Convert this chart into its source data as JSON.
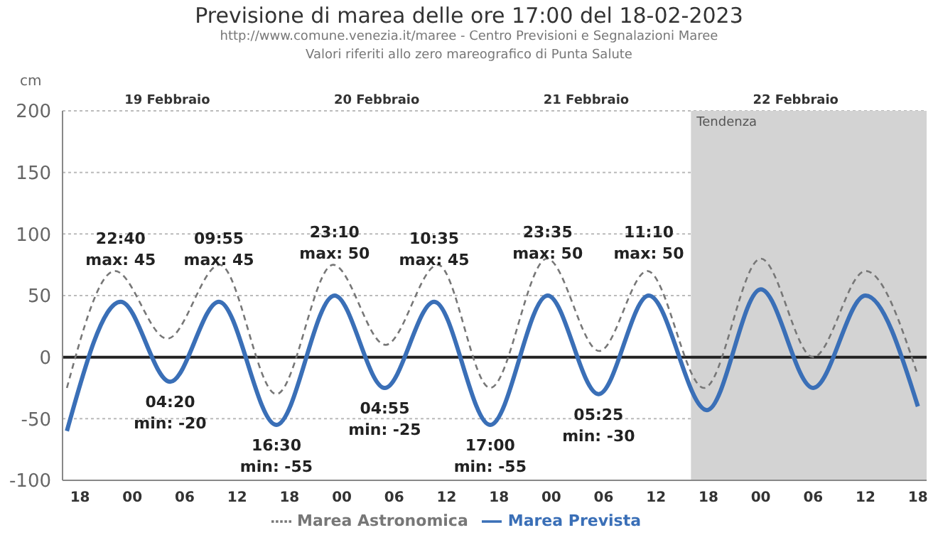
{
  "chart_data": {
    "type": "line",
    "title": "Previsione di marea delle ore 17:00 del 18-02-2023",
    "subtitle": "http://www.comune.venezia.it/maree - Centro Previsioni e Segnalazioni Maree\nValori riferiti allo zero mareografico di Punta Salute",
    "ylabel": "cm",
    "xlim": [
      "2023-02-18T16:00",
      "2023-02-22T19:00"
    ],
    "xticks": [
      {
        "value": "2023-02-18T18:00",
        "label": "18"
      },
      {
        "value": "2023-02-19T00:00",
        "label": "00"
      },
      {
        "value": "2023-02-19T06:00",
        "label": "06"
      },
      {
        "value": "2023-02-19T12:00",
        "label": "12"
      },
      {
        "value": "2023-02-19T18:00",
        "label": "18"
      },
      {
        "value": "2023-02-20T00:00",
        "label": "00"
      },
      {
        "value": "2023-02-20T06:00",
        "label": "06"
      },
      {
        "value": "2023-02-20T12:00",
        "label": "12"
      },
      {
        "value": "2023-02-20T18:00",
        "label": "18"
      },
      {
        "value": "2023-02-21T00:00",
        "label": "00"
      },
      {
        "value": "2023-02-21T06:00",
        "label": "06"
      },
      {
        "value": "2023-02-21T12:00",
        "label": "12"
      },
      {
        "value": "2023-02-21T18:00",
        "label": "18"
      },
      {
        "value": "2023-02-22T00:00",
        "label": "00"
      },
      {
        "value": "2023-02-22T06:00",
        "label": "06"
      },
      {
        "value": "2023-02-22T12:00",
        "label": "12"
      },
      {
        "value": "2023-02-22T18:00",
        "label": "18"
      }
    ],
    "x2lim": [
      "2023-02-18T16:00",
      "2023-02-22T19:00"
    ],
    "x2ticks": [
      {
        "value": "2023-02-19T04:00",
        "label": "19 Febbraio"
      },
      {
        "value": "2023-02-20T04:00",
        "label": "20 Febbraio"
      },
      {
        "value": "2023-02-21T04:00",
        "label": "21 Febbraio"
      },
      {
        "value": "2023-02-22T04:00",
        "label": "22 Febbraio"
      }
    ],
    "ylim": [
      -100,
      200
    ],
    "yticks": [
      -100,
      -50,
      0,
      50,
      100,
      150,
      200
    ],
    "grid": "y",
    "legend": "bottom",
    "marker": "none",
    "series": [
      {
        "name": "Marea Prevista",
        "color": "#3a6fb7",
        "line_style": "solid",
        "x": [
          "2023-02-18T16:30",
          "2023-02-18T22:40",
          "2023-02-19T04:20",
          "2023-02-19T09:55",
          "2023-02-19T16:30",
          "2023-02-19T23:10",
          "2023-02-20T04:55",
          "2023-02-20T10:35",
          "2023-02-20T17:00",
          "2023-02-20T23:35",
          "2023-02-21T05:25",
          "2023-02-21T11:10",
          "2023-02-21T17:50",
          "2023-02-22T00:00",
          "2023-02-22T06:00",
          "2023-02-22T12:00",
          "2023-02-22T18:00"
        ],
        "values": [
          -60,
          45,
          -20,
          45,
          -55,
          50,
          -25,
          45,
          -55,
          50,
          -30,
          50,
          -43,
          55,
          -25,
          50,
          -40
        ]
      },
      {
        "name": "Marea Astronomica",
        "color": "#777777",
        "line_style": "dashed",
        "x": [
          "2023-02-18T16:30",
          "2023-02-18T22:00",
          "2023-02-19T04:00",
          "2023-02-19T10:00",
          "2023-02-19T16:30",
          "2023-02-19T23:00",
          "2023-02-20T05:00",
          "2023-02-20T11:00",
          "2023-02-20T17:00",
          "2023-02-20T23:30",
          "2023-02-21T05:30",
          "2023-02-21T11:00",
          "2023-02-21T17:30",
          "2023-02-22T00:00",
          "2023-02-22T06:00",
          "2023-02-22T12:00",
          "2023-02-22T18:00"
        ],
        "values": [
          -25,
          70,
          15,
          75,
          -30,
          75,
          10,
          75,
          -25,
          80,
          5,
          70,
          -25,
          80,
          0,
          70,
          -15
        ]
      }
    ],
    "ref_lines": [
      {
        "axis": "y",
        "value": 0,
        "color": "#222222"
      }
    ],
    "bands": [
      {
        "axis": "x",
        "from": "2023-02-21T16:00",
        "to": "2023-02-22T19:00",
        "label": "Tendenza",
        "color": "#d3d3d3"
      }
    ],
    "annotations": [
      {
        "text": "22:40\nmax: 45",
        "x": "2023-02-18T22:40",
        "y": 45
      },
      {
        "text": "04:20\nmin: -20",
        "x": "2023-02-19T04:20",
        "y": -20
      },
      {
        "text": "09:55\nmax: 45",
        "x": "2023-02-19T09:55",
        "y": 45
      },
      {
        "text": "16:30\nmin: -55",
        "x": "2023-02-19T16:30",
        "y": -55
      },
      {
        "text": "23:10\nmax: 50",
        "x": "2023-02-19T23:10",
        "y": 50
      },
      {
        "text": "04:55\nmin: -25",
        "x": "2023-02-20T04:55",
        "y": -25
      },
      {
        "text": "10:35\nmax: 45",
        "x": "2023-02-20T10:35",
        "y": 45
      },
      {
        "text": "17:00\nmin: -55",
        "x": "2023-02-20T17:00",
        "y": -55
      },
      {
        "text": "23:35\nmax: 50",
        "x": "2023-02-20T23:35",
        "y": 50
      },
      {
        "text": "05:25\nmin: -30",
        "x": "2023-02-21T05:25",
        "y": -30
      },
      {
        "text": "11:10\nmax: 50",
        "x": "2023-02-21T11:10",
        "y": 50
      }
    ]
  }
}
